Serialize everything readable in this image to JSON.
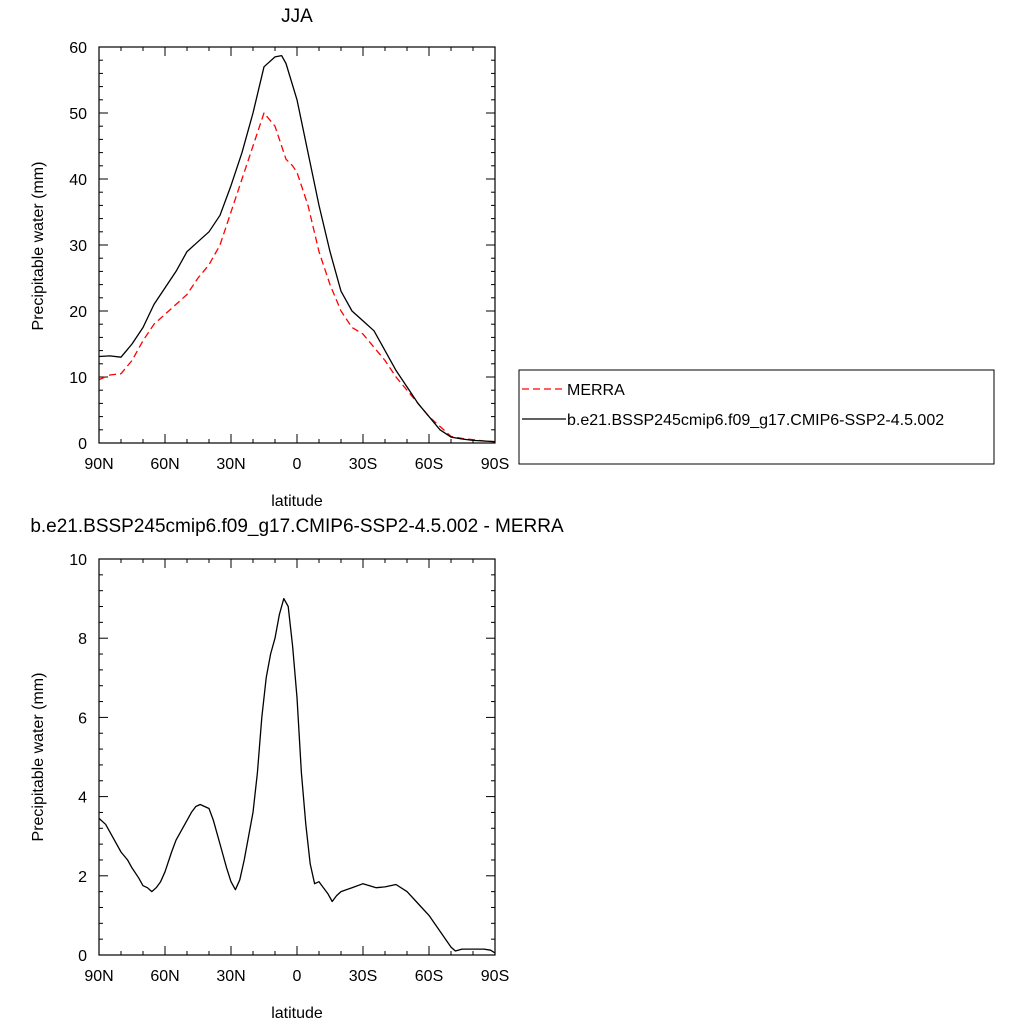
{
  "chart_data": [
    {
      "type": "line",
      "title": "JJA",
      "xlabel": "latitude",
      "ylabel": "Precipitable water (mm)",
      "xlim": [
        90,
        -90
      ],
      "ylim": [
        0,
        60
      ],
      "x_ticks": [
        90,
        60,
        30,
        0,
        -30,
        -60,
        -90
      ],
      "x_tick_labels": [
        "90N",
        "60N",
        "30N",
        "0",
        "30S",
        "60S",
        "90S"
      ],
      "y_ticks": [
        0,
        10,
        20,
        30,
        40,
        50,
        60
      ],
      "y_tick_labels": [
        "0",
        "10",
        "20",
        "30",
        "40",
        "50",
        "60"
      ],
      "legend_position": "right",
      "series": [
        {
          "name": "MERRA",
          "color": "#ff0000",
          "dash": "dashed",
          "x": [
            90,
            85,
            80,
            75,
            70,
            65,
            60,
            55,
            50,
            45,
            40,
            35,
            30,
            25,
            20,
            15,
            10,
            5,
            2,
            0,
            -5,
            -10,
            -15,
            -20,
            -25,
            -30,
            -35,
            -40,
            -45,
            -50,
            -55,
            -60,
            -65,
            -70,
            -75,
            -80,
            -85,
            -90
          ],
          "values": [
            9.6,
            10.3,
            10.5,
            12.5,
            15.5,
            18.0,
            19.5,
            21.0,
            22.5,
            25.0,
            27.0,
            30.0,
            35.0,
            40.0,
            45.0,
            50.0,
            48.0,
            43.0,
            42.0,
            41.0,
            36.0,
            29.0,
            24.0,
            20.0,
            17.5,
            16.5,
            14.5,
            12.5,
            10.0,
            8.0,
            6.0,
            4.0,
            2.5,
            1.0,
            0.7,
            0.5,
            0.3,
            0.2
          ]
        },
        {
          "name": "b.e21.BSSP245cmip6.f09_g17.CMIP6-SSP2-4.5.002",
          "color": "#000000",
          "dash": "solid",
          "x": [
            90,
            85,
            80,
            75,
            70,
            65,
            60,
            55,
            50,
            45,
            40,
            35,
            30,
            25,
            20,
            15,
            10,
            7,
            5,
            0,
            -5,
            -10,
            -15,
            -20,
            -25,
            -30,
            -35,
            -40,
            -45,
            -50,
            -55,
            -60,
            -65,
            -70,
            -75,
            -80,
            -85,
            -90
          ],
          "values": [
            13.1,
            13.2,
            13.0,
            15.0,
            17.5,
            21.0,
            23.5,
            26.0,
            29.0,
            30.5,
            32.0,
            34.5,
            39.0,
            44.0,
            50.0,
            57.0,
            58.5,
            58.7,
            57.5,
            52.0,
            44.0,
            36.0,
            29.0,
            23.0,
            20.0,
            18.5,
            17.0,
            14.0,
            11.0,
            8.5,
            6.0,
            4.0,
            2.0,
            0.9,
            0.6,
            0.4,
            0.3,
            0.2
          ]
        }
      ]
    },
    {
      "type": "line",
      "title": "b.e21.BSSP245cmip6.f09_g17.CMIP6-SSP2-4.5.002 - MERRA",
      "xlabel": "latitude",
      "ylabel": "Precipitable water (mm)",
      "xlim": [
        90,
        -90
      ],
      "ylim": [
        0,
        10
      ],
      "x_ticks": [
        90,
        60,
        30,
        0,
        -30,
        -60,
        -90
      ],
      "x_tick_labels": [
        "90N",
        "60N",
        "30N",
        "0",
        "30S",
        "60S",
        "90S"
      ],
      "y_ticks": [
        0,
        2,
        4,
        6,
        8,
        10
      ],
      "y_tick_labels": [
        "0",
        "2",
        "4",
        "6",
        "8",
        "10"
      ],
      "series": [
        {
          "color": "#000000",
          "dash": "solid",
          "x": [
            90,
            87,
            85,
            82,
            80,
            77,
            75,
            72,
            70,
            68,
            66,
            64,
            62,
            60,
            57,
            55,
            52,
            50,
            48,
            46,
            44,
            42,
            40,
            38,
            36,
            34,
            32,
            30,
            28,
            26,
            24,
            22,
            20,
            18,
            16,
            14,
            12,
            10,
            8,
            6,
            4,
            2,
            0,
            -2,
            -4,
            -6,
            -8,
            -10,
            -12,
            -14,
            -16,
            -18,
            -20,
            -25,
            -30,
            -33,
            -36,
            -40,
            -45,
            -50,
            -55,
            -60,
            -65,
            -70,
            -72,
            -75,
            -80,
            -85,
            -88,
            -90
          ],
          "values": [
            3.45,
            3.3,
            3.1,
            2.8,
            2.6,
            2.4,
            2.2,
            1.95,
            1.75,
            1.7,
            1.6,
            1.7,
            1.85,
            2.1,
            2.6,
            2.9,
            3.2,
            3.4,
            3.6,
            3.75,
            3.8,
            3.75,
            3.7,
            3.4,
            3.0,
            2.6,
            2.2,
            1.85,
            1.65,
            1.9,
            2.4,
            3.0,
            3.6,
            4.6,
            6.0,
            7.0,
            7.6,
            8.0,
            8.6,
            9.0,
            8.8,
            7.8,
            6.5,
            4.6,
            3.3,
            2.3,
            1.8,
            1.85,
            1.7,
            1.55,
            1.35,
            1.5,
            1.6,
            1.7,
            1.8,
            1.75,
            1.7,
            1.72,
            1.78,
            1.6,
            1.3,
            1.0,
            0.6,
            0.2,
            0.1,
            0.15,
            0.15,
            0.15,
            0.12,
            0.05
          ]
        }
      ]
    }
  ]
}
